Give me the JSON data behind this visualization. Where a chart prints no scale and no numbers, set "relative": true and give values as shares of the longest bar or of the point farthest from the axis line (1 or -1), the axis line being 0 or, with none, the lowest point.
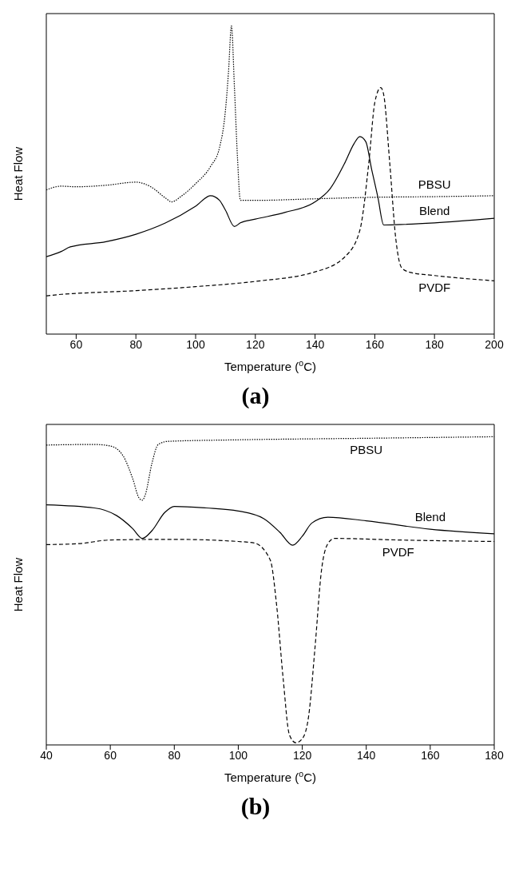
{
  "chart_data": [
    {
      "type": "line",
      "title": "(a)",
      "xlabel": "Temperature ($^{o}$C)",
      "ylabel": "Heat Flow",
      "relative": true,
      "xlim": [
        50,
        200
      ],
      "xticks": [
        60,
        80,
        100,
        120,
        140,
        160,
        180,
        200
      ],
      "series": [
        {
          "name": "PBSU",
          "color": "#000000",
          "line_style": "dotted",
          "x": [
            50,
            55,
            60,
            70,
            80,
            85,
            90,
            92,
            95,
            100,
            105,
            108,
            110,
            111,
            112,
            113,
            114,
            115,
            120,
            140,
            160,
            180,
            200
          ],
          "values": [
            0.468,
            0.48,
            0.478,
            0.483,
            0.493,
            0.478,
            0.441,
            0.429,
            0.446,
            0.488,
            0.544,
            0.605,
            0.727,
            0.849,
            1.0,
            0.8,
            0.576,
            0.434,
            0.434,
            0.439,
            0.444,
            0.446,
            0.449
          ]
        },
        {
          "name": "Blend",
          "color": "#000000",
          "line_style": "solid",
          "x": [
            50,
            55,
            58,
            70,
            80,
            90,
            100,
            105,
            108,
            110,
            113,
            115,
            120,
            130,
            140,
            145,
            150,
            153,
            155,
            157,
            159,
            161,
            163,
            170,
            180,
            200
          ],
          "values": [
            0.251,
            0.268,
            0.283,
            0.3,
            0.324,
            0.361,
            0.415,
            0.449,
            0.434,
            0.402,
            0.349,
            0.361,
            0.373,
            0.395,
            0.429,
            0.471,
            0.556,
            0.617,
            0.641,
            0.624,
            0.532,
            0.446,
            0.354,
            0.356,
            0.361,
            0.376
          ]
        },
        {
          "name": "PVDF",
          "color": "#000000",
          "line_style": "dashed",
          "x": [
            50,
            55,
            60,
            80,
            100,
            120,
            140,
            150,
            155,
            158,
            160,
            162,
            163,
            165,
            167,
            169,
            172,
            180,
            200
          ],
          "values": [
            0.124,
            0.129,
            0.132,
            0.141,
            0.154,
            0.171,
            0.202,
            0.251,
            0.337,
            0.556,
            0.751,
            0.8,
            0.776,
            0.556,
            0.312,
            0.215,
            0.2,
            0.19,
            0.173
          ]
        }
      ]
    },
    {
      "type": "line",
      "title": "(b)",
      "xlabel": "Temperature ($^{o}$C)",
      "ylabel": "Heat Flow",
      "relative": true,
      "xlim": [
        40,
        180
      ],
      "xticks": [
        40,
        60,
        80,
        100,
        120,
        140,
        160,
        180
      ],
      "series": [
        {
          "name": "PBSU",
          "color": "#000000",
          "line_style": "dotted",
          "x": [
            40,
            55,
            60,
            64,
            67,
            69,
            70,
            71,
            73,
            75,
            78,
            100,
            140,
            180
          ],
          "values": [
            0.973,
            0.975,
            0.97,
            0.938,
            0.864,
            0.801,
            0.794,
            0.814,
            0.913,
            0.975,
            0.985,
            0.99,
            0.995,
            1.0
          ]
        },
        {
          "name": "Blend",
          "color": "#000000",
          "line_style": "solid",
          "x": [
            40,
            55,
            62,
            67,
            70,
            73,
            77,
            80,
            90,
            100,
            108,
            113,
            117,
            120,
            123,
            128,
            140,
            160,
            180
          ],
          "values": [
            0.779,
            0.769,
            0.744,
            0.702,
            0.67,
            0.695,
            0.754,
            0.774,
            0.769,
            0.759,
            0.734,
            0.69,
            0.648,
            0.677,
            0.72,
            0.739,
            0.727,
            0.7,
            0.685
          ]
        },
        {
          "name": "PVDF",
          "color": "#000000",
          "line_style": "dashed",
          "x": [
            40,
            50,
            60,
            80,
            100,
            105,
            110,
            112,
            114,
            116,
            118,
            120,
            122,
            124,
            126,
            128,
            130,
            150,
            180
          ],
          "values": [
            0.65,
            0.653,
            0.665,
            0.667,
            0.66,
            0.655,
            0.6,
            0.452,
            0.218,
            0.032,
            0.007,
            0.02,
            0.094,
            0.318,
            0.566,
            0.653,
            0.67,
            0.665,
            0.66
          ]
        }
      ]
    }
  ]
}
